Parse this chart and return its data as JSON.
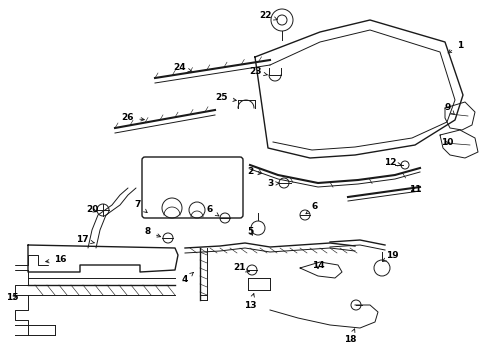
{
  "bg_color": "#ffffff",
  "line_color": "#1a1a1a",
  "label_color": "#000000",
  "figsize": [
    4.89,
    3.6
  ],
  "dpi": 100,
  "lw_thin": 0.7,
  "lw_med": 1.0,
  "lw_thick": 1.5,
  "font_size": 6.5,
  "font_bold": true,
  "xlim": [
    0,
    489
  ],
  "ylim": [
    0,
    360
  ]
}
